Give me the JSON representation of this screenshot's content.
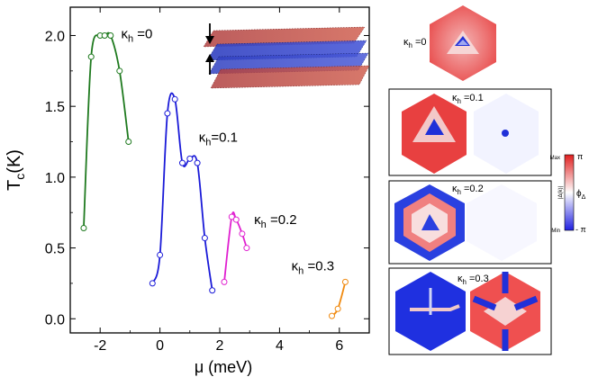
{
  "chart_data": {
    "type": "line",
    "xlabel": "μ (meV)",
    "ylabel_main": "T",
    "ylabel_sub": "c",
    "ylabel_unit": "(K)",
    "xlim": [
      -3,
      7
    ],
    "ylim": [
      -0.1,
      2.2
    ],
    "x_ticks": [
      -2,
      0,
      2,
      4,
      6
    ],
    "x_tick_labels": [
      "-2",
      "0",
      "2",
      "4",
      "6"
    ],
    "y_ticks": [
      0.0,
      0.5,
      1.0,
      1.5,
      2.0
    ],
    "y_tick_labels": [
      "0.0",
      "0.5",
      "1.0",
      "1.5",
      "2.0"
    ],
    "series": [
      {
        "name": "κh =0",
        "label_main": "κ",
        "label_sub": "h",
        "label_val": " =0",
        "color": "#1f7a1f",
        "x": [
          -2.55,
          -2.3,
          -2.0,
          -1.85,
          -1.65,
          -1.35,
          -1.05
        ],
        "y": [
          0.64,
          1.85,
          2.0,
          2.0,
          2.0,
          1.75,
          1.25
        ],
        "label_at": [
          -1.3,
          1.98
        ]
      },
      {
        "name": "κh=0.1",
        "label_main": "κ",
        "label_sub": "h",
        "label_val": "=0.1",
        "color": "#1a1ad8",
        "x": [
          -0.25,
          0.0,
          0.25,
          0.5,
          0.75,
          1.0,
          1.25,
          1.5,
          1.75
        ],
        "y": [
          0.25,
          0.45,
          1.45,
          1.55,
          1.1,
          1.13,
          1.1,
          0.57,
          0.2
        ],
        "label_at": [
          1.3,
          1.25
        ]
      },
      {
        "name": "κh =0.2",
        "label_main": "κ",
        "label_sub": "h",
        "label_val": " =0.2",
        "color": "#e020d0",
        "x": [
          2.15,
          2.4,
          2.55,
          2.75,
          2.9
        ],
        "y": [
          0.26,
          0.72,
          0.7,
          0.6,
          0.5
        ],
        "label_at": [
          3.15,
          0.67
        ]
      },
      {
        "name": "κh =0.3",
        "label_main": "κ",
        "label_sub": "h",
        "label_val": " =0.3",
        "color": "#f08a10",
        "x": [
          5.75,
          5.95,
          6.2
        ],
        "y": [
          0.02,
          0.07,
          0.26
        ],
        "label_at": [
          4.4,
          0.34
        ]
      }
    ],
    "panels": [
      {
        "label_main": "κ",
        "label_sub": "h",
        "label_val": " =0"
      },
      {
        "label_main": "κ",
        "label_sub": "h",
        "label_val": " =0.1"
      },
      {
        "label_main": "κ",
        "label_sub": "h",
        "label_val": " =0.2"
      },
      {
        "label_main": "κ",
        "label_sub": "h",
        "label_val": " =0.3"
      }
    ],
    "colorbar": {
      "max_label": "Max",
      "min_label": "Min",
      "top_label": "π",
      "bottom_label": "- π",
      "side_label": "|Δ(k)|",
      "phi_label": "ϕ",
      "phi_sub": "Δ",
      "colors": [
        "#e02020",
        "#ffffff",
        "#2020e0"
      ]
    }
  }
}
